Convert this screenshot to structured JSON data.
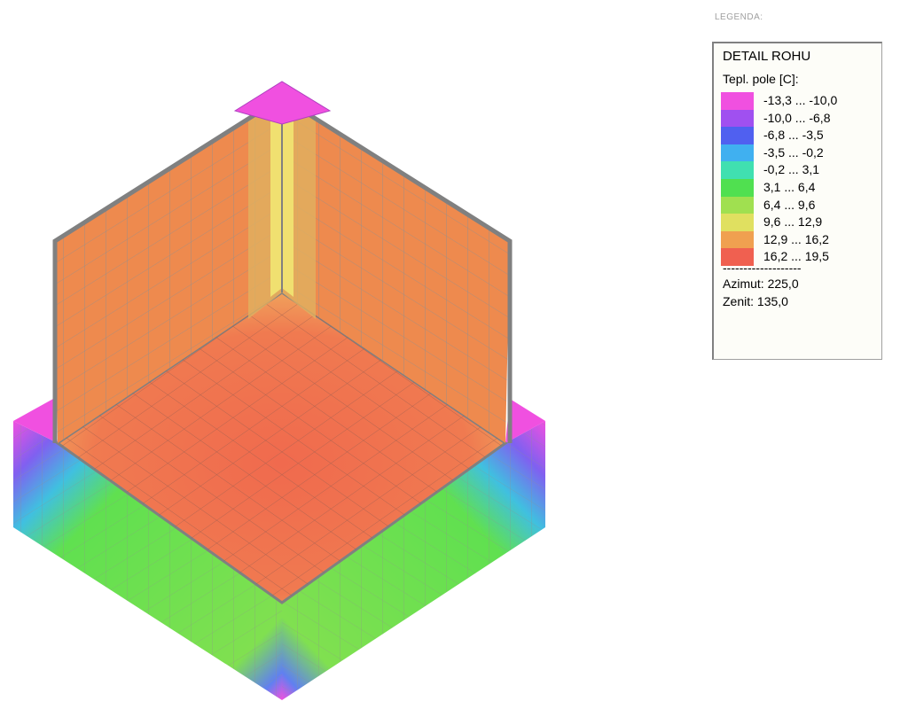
{
  "legend": {
    "caption": "LEGENDA:",
    "title": "DETAIL ROHU",
    "subtitle": "Tepl. pole [C]:",
    "ranges": [
      {
        "label": "-13,3 ... -10,0",
        "color": "#f050e0"
      },
      {
        "label": "-10,0 ... -6,8",
        "color": "#a050f0"
      },
      {
        "label": "-6,8 ... -3,5",
        "color": "#5060f0"
      },
      {
        "label": "-3,5 ... -0,2",
        "color": "#40b0f0"
      },
      {
        "label": "-0,2 ... 3,1",
        "color": "#40e0b0"
      },
      {
        "label": "3,1 ... 6,4",
        "color": "#50e050"
      },
      {
        "label": "6,4 ... 9,6",
        "color": "#a0e050"
      },
      {
        "label": "9,6 ... 12,9",
        "color": "#e0e060"
      },
      {
        "label": "12,9 ... 16,2",
        "color": "#f0a050"
      },
      {
        "label": "16,2 ... 19,5",
        "color": "#f06050"
      }
    ],
    "separator": "-------------------",
    "azimuth": "Azimut: 225,0",
    "zenith": "Zenit: 135,0"
  }
}
